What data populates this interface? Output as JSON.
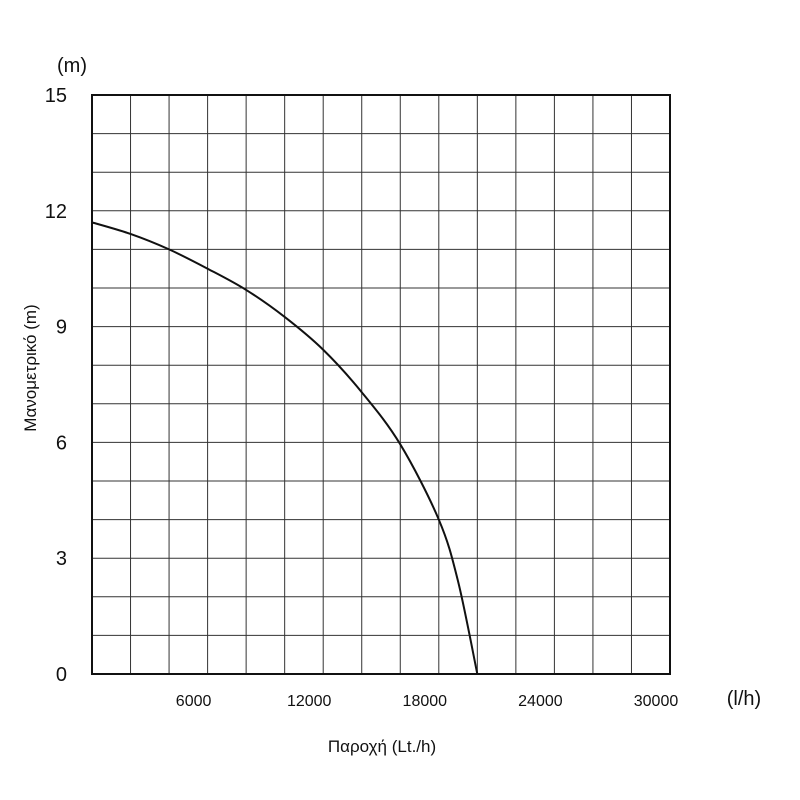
{
  "chart_data": {
    "type": "line",
    "xlabel": "Παροχή (Lt./h)",
    "ylabel": "Μανομετρικό (m)",
    "x_unit": "(l/h)",
    "y_unit": "(m)",
    "xlim": [
      0,
      30000
    ],
    "ylim": [
      0,
      15
    ],
    "x_ticks": [
      6000,
      12000,
      18000,
      24000,
      30000
    ],
    "x_tick_labels": [
      "6000",
      "12000",
      "18000",
      "24000",
      "30000"
    ],
    "y_ticks": [
      0,
      3,
      6,
      9,
      12,
      15
    ],
    "y_tick_labels": [
      "0",
      "3",
      "6",
      "9",
      "12",
      "15"
    ],
    "grid": true,
    "grid_x_step": 2000,
    "grid_y_step": 1,
    "series": [
      {
        "color": "#111111",
        "x": [
          0,
          2000,
          4000,
          6000,
          8000,
          10000,
          12000,
          14000,
          16000,
          18000,
          19000,
          20000
        ],
        "y": [
          11.7,
          11.4,
          11.0,
          10.5,
          9.95,
          9.25,
          8.4,
          7.3,
          5.95,
          4.0,
          2.4,
          0.0
        ]
      }
    ]
  }
}
